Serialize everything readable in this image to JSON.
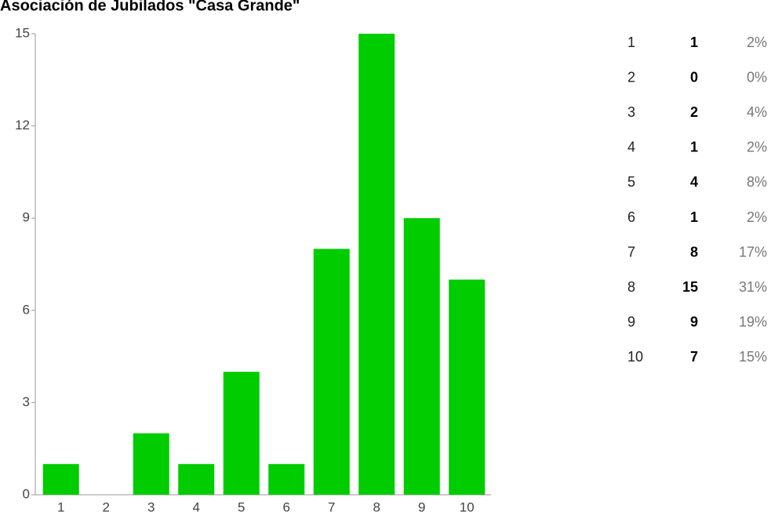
{
  "chart_data": {
    "type": "bar",
    "title": "Asociación de Jubilados \"Casa Grande\"",
    "categories": [
      "1",
      "2",
      "3",
      "4",
      "5",
      "6",
      "7",
      "8",
      "9",
      "10"
    ],
    "values": [
      1,
      0,
      2,
      1,
      4,
      1,
      8,
      15,
      9,
      7
    ],
    "color": "#00cc00",
    "ylim": [
      0,
      15
    ],
    "yticks": [
      0,
      3,
      6,
      9,
      12,
      15
    ],
    "grid": false
  },
  "table": {
    "percentages": [
      "2%",
      "0%",
      "4%",
      "2%",
      "8%",
      "2%",
      "17%",
      "31%",
      "19%",
      "15%"
    ]
  }
}
